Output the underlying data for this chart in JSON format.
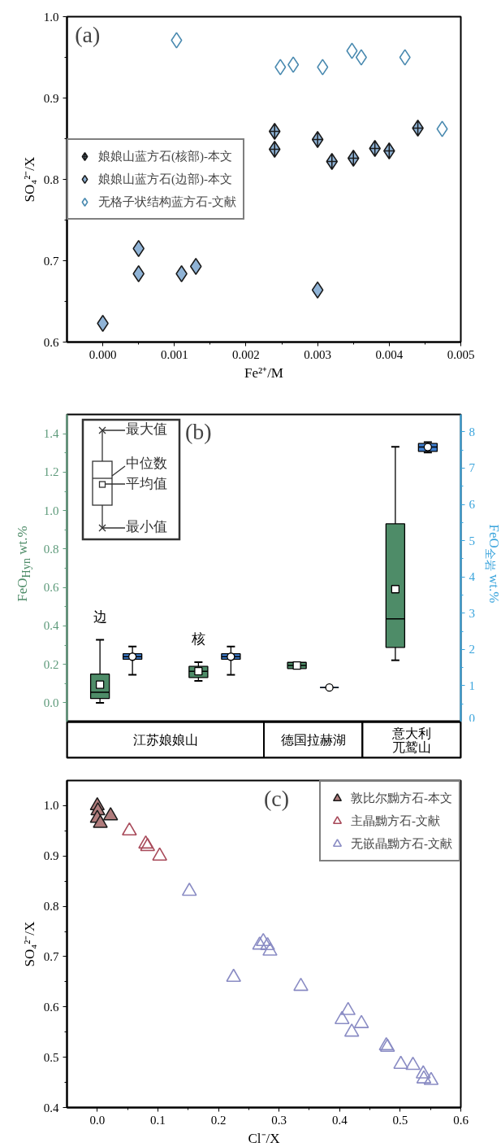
{
  "chart_data": [
    {
      "type": "scatter",
      "title": "(a)",
      "xlabel": "Fe²⁺/M",
      "ylabel": "SO₄²⁻/X",
      "legend": "left",
      "xlim": [
        -0.0005,
        0.005
      ],
      "ylim": [
        0.6,
        1.0
      ],
      "xticks": [
        {
          "value": 0,
          "label": "0.000"
        },
        {
          "value": 0.001,
          "label": "0.001"
        },
        {
          "value": 0.002,
          "label": "0.002"
        },
        {
          "value": 0.003,
          "label": "0.003"
        },
        {
          "value": 0.004,
          "label": "0.004"
        },
        {
          "value": 0.005,
          "label": "0.005"
        }
      ],
      "yticks": [
        {
          "value": 0.6,
          "label": "0.6"
        },
        {
          "value": 0.7,
          "label": "0.7"
        },
        {
          "value": 0.8,
          "label": "0.8"
        },
        {
          "value": 0.9,
          "label": "0.9"
        },
        {
          "value": 1.0,
          "label": "1.0"
        }
      ],
      "series": [
        {
          "name": "娘娘山蓝方石(核部)-本文",
          "color": "#1a1a1a",
          "marker": "cross",
          "colors": [
            "#8fb3d6",
            "#8fb3d6",
            "#8fb3d6",
            "#8fb3d6",
            "#8fb3d6",
            "#8fb3d6",
            "#8fb3d6",
            "#8fb3d6"
          ],
          "x": [
            0.0024,
            0.0024,
            0.003,
            0.0032,
            0.0035,
            0.0038,
            0.004,
            0.0044
          ],
          "values": [
            0.859,
            0.837,
            0.849,
            0.822,
            0.826,
            0.838,
            0.835,
            0.863
          ]
        },
        {
          "name": "娘娘山蓝方石(边部)-本文",
          "color": "#1a1a1a",
          "marker": "diamond",
          "colors": [
            "#8fb3d6",
            "#8fb3d6",
            "#8fb3d6",
            "#8fb3d6",
            "#8fb3d6",
            "#8fb3d6"
          ],
          "x": [
            0.0,
            0.0005,
            0.0005,
            0.0011,
            0.0013,
            0.003
          ],
          "values": [
            0.623,
            0.715,
            0.684,
            0.684,
            0.693,
            0.664
          ]
        },
        {
          "name": "无格子状结构蓝方石-文献",
          "color": "#4a8ab0",
          "marker": "diamond",
          "x": [
            0.00103,
            0.00248,
            0.00266,
            0.00307,
            0.00348,
            0.00361,
            0.00422,
            0.00474
          ],
          "values": [
            0.971,
            0.938,
            0.941,
            0.938,
            0.958,
            0.95,
            0.95,
            0.862
          ]
        }
      ]
    },
    {
      "type": "box",
      "title": "(b)",
      "ylabel": "FeO$_{Hyn}$ wt.%",
      "y2label": "FeO$_{全岩}$ wt.%",
      "categories": [
        "边",
        "核",
        "德国拉赫湖",
        "意大利兀鹫山"
      ],
      "ylim": [
        -0.1,
        1.5
      ],
      "yticks": [
        {
          "value": 0.0,
          "label": "0.0"
        },
        {
          "value": 0.2,
          "label": "0.2"
        },
        {
          "value": 0.4,
          "label": "0.4"
        },
        {
          "value": 0.6,
          "label": "0.6"
        },
        {
          "value": 0.8,
          "label": "0.8"
        },
        {
          "value": 1.0,
          "label": "1.0"
        },
        {
          "value": 1.2,
          "label": "1.2"
        },
        {
          "value": 1.4,
          "label": "1.4"
        }
      ],
      "y2lim": [
        0,
        8.48
      ],
      "y2ticks": [
        0,
        1,
        2,
        3,
        4,
        5,
        6,
        7,
        8
      ],
      "annotations": [
        "最大值",
        "中位数",
        "平均值",
        "最小值",
        "江苏娘娘山"
      ],
      "series": [
        {
          "color": "#4e8c68",
          "marker": "square",
          "boxes": [
            {
              "low": 0.0,
              "q1": 0.022,
              "median": 0.055,
              "q3": 0.149,
              "high": 0.328,
              "mean": 0.094
            },
            {
              "low": 0.114,
              "q1": 0.131,
              "median": 0.164,
              "q3": 0.189,
              "high": 0.211,
              "mean": 0.164
            },
            {
              "low": 0.178,
              "q1": 0.178,
              "median": 0.194,
              "q3": 0.21,
              "high": 0.21,
              "mean": 0.194
            },
            {
              "low": 0.221,
              "q1": 0.288,
              "median": 0.436,
              "q3": 0.931,
              "high": 1.332,
              "mean": 0.591
            }
          ]
        },
        {
          "color": "#3f7fd0",
          "marker": "circle",
          "axis": "y2",
          "boxes": [
            {
              "low": 1.3,
              "q1": 1.73,
              "median": 1.8,
              "q3": 1.88,
              "high": 2.08,
              "mean": 1.8
            },
            {
              "low": 1.3,
              "q1": 1.73,
              "median": 1.8,
              "q3": 1.88,
              "high": 2.08,
              "mean": 1.8
            },
            {
              "low": 0.95,
              "q1": 0.95,
              "median": 0.95,
              "q3": 0.95,
              "high": 0.95,
              "mean": 0.95
            },
            {
              "low": 7.43,
              "q1": 7.46,
              "median": 7.58,
              "q3": 7.68,
              "high": 7.72,
              "mean": 7.58
            }
          ]
        }
      ]
    },
    {
      "type": "scatter",
      "title": "(c)",
      "xlabel": "Cl⁻/X",
      "ylabel": "SO₄²⁻/X",
      "legend": "top right",
      "xlim": [
        -0.05,
        0.6
      ],
      "ylim": [
        0.4,
        1.05
      ],
      "xticks": [
        {
          "value": 0.0,
          "label": "0.0"
        },
        {
          "value": 0.1,
          "label": "0.1"
        },
        {
          "value": 0.2,
          "label": "0.2"
        },
        {
          "value": 0.3,
          "label": "0.3"
        },
        {
          "value": 0.4,
          "label": "0.4"
        },
        {
          "value": 0.5,
          "label": "0.5"
        },
        {
          "value": 0.6,
          "label": "0.6"
        }
      ],
      "yticks": [
        {
          "value": 0.4,
          "label": "0.4"
        },
        {
          "value": 0.5,
          "label": "0.5"
        },
        {
          "value": 0.6,
          "label": "0.6"
        },
        {
          "value": 0.7,
          "label": "0.7"
        },
        {
          "value": 0.8,
          "label": "0.8"
        },
        {
          "value": 0.9,
          "label": "0.9"
        },
        {
          "value": 1.0,
          "label": "1.0"
        }
      ],
      "series": [
        {
          "name": "敦比尔黝方石-本文",
          "color": "#1a1a1a",
          "marker": "triangle",
          "colors": [
            "#b07c7c",
            "#b07c7c",
            "#b07c7c",
            "#b07c7c",
            "#b07c7c"
          ],
          "x": [
            0.0,
            0.001,
            0.0,
            0.005,
            0.022
          ],
          "values": [
            1.0,
            0.99,
            0.975,
            0.965,
            0.98
          ]
        },
        {
          "name": "主晶黝方石-文献",
          "color": "#a84a5a",
          "marker": "triangle",
          "x": [
            0.053,
            0.08,
            0.083,
            0.103
          ],
          "values": [
            0.95,
            0.924,
            0.919,
            0.9
          ]
        },
        {
          "name": "无嵌晶黝方石-文献",
          "color": "#8a8cc4",
          "marker": "triangle",
          "x": [
            0.152,
            0.225,
            0.268,
            0.274,
            0.281,
            0.285,
            0.336,
            0.404,
            0.414,
            0.42,
            0.436,
            0.477,
            0.479,
            0.501,
            0.521,
            0.538,
            0.539,
            0.551
          ],
          "values": [
            0.83,
            0.659,
            0.723,
            0.73,
            0.722,
            0.711,
            0.641,
            0.575,
            0.593,
            0.55,
            0.567,
            0.523,
            0.52,
            0.486,
            0.484,
            0.467,
            0.457,
            0.454
          ]
        }
      ]
    }
  ]
}
